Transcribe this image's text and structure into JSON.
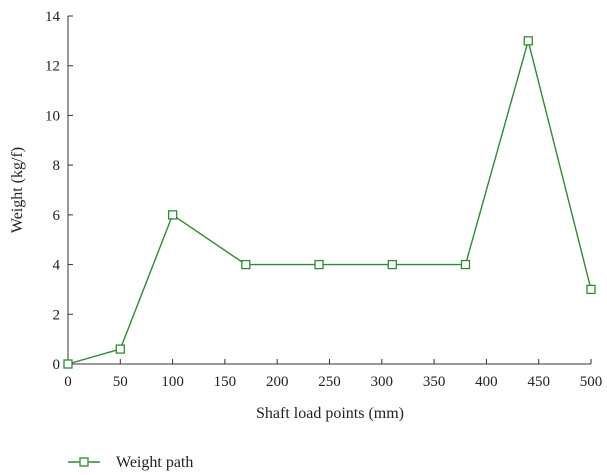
{
  "chart_data": {
    "type": "line",
    "title": "",
    "xlabel": "Shaft load points (mm)",
    "ylabel": "Weight (kg/f)",
    "xlim": [
      0,
      500
    ],
    "ylim": [
      0,
      14
    ],
    "xticks": [
      0,
      50,
      100,
      150,
      200,
      250,
      300,
      350,
      400,
      450,
      500
    ],
    "yticks": [
      0,
      2,
      4,
      6,
      8,
      10,
      12,
      14
    ],
    "grid": false,
    "legend": "bottom-left",
    "series": [
      {
        "name": "Weight path",
        "color": "#2e8b2e",
        "marker": "square",
        "x": [
          0,
          50,
          100,
          170,
          240,
          310,
          380,
          440,
          500
        ],
        "y": [
          0,
          0.6,
          6,
          4,
          4,
          4,
          4,
          13,
          3
        ]
      }
    ]
  }
}
